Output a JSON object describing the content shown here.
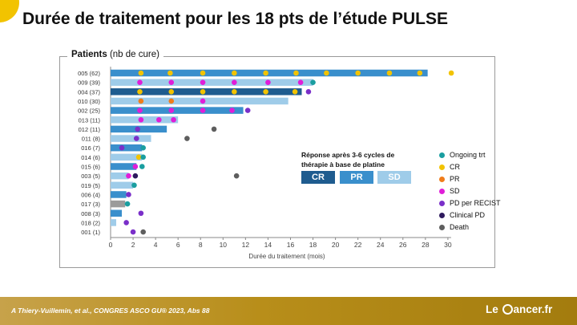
{
  "title": "Durée de traitement pour les 18 pts de l’étude PULSE",
  "panel": {
    "label_bold": "Patients",
    "label_rest": " (nb de cure)"
  },
  "response_box": {
    "title": "Réponse après 3-6 cycles de thérapie à base de platine",
    "items": [
      {
        "label": "CR",
        "color": "#1f5c8f"
      },
      {
        "label": "PR",
        "color": "#3a8fcc"
      },
      {
        "label": "SD",
        "color": "#9fcce9"
      }
    ]
  },
  "legend": [
    {
      "label": "Ongoing trt",
      "color": "#1a9ea0",
      "icon": "teal-dot-icon"
    },
    {
      "label": "CR",
      "color": "#f2c300",
      "icon": "yellow-dot-icon"
    },
    {
      "label": "PR",
      "color": "#f07c1a",
      "icon": "orange-dot-icon"
    },
    {
      "label": "SD",
      "color": "#e01ed8",
      "icon": "magenta-dot-icon"
    },
    {
      "label": "PD per RECIST",
      "color": "#7a2fc9",
      "icon": "purple-dot-icon"
    },
    {
      "label": "Clinical PD",
      "color": "#2e1a5e",
      "icon": "dark-purple-dot-icon"
    },
    {
      "label": "Death",
      "color": "#5e5e5e",
      "icon": "gray-dot-icon"
    }
  ],
  "footer": {
    "citation": "A Thiery-Vuillemin, et al., CONGRES ASCO GU® 2023, Abs 88",
    "logo_left": "Le ",
    "logo_right": "ancer.fr"
  },
  "chart_data": {
    "type": "bar",
    "orientation": "horizontal",
    "xlabel": "Durée du traitement (mois)",
    "xlim": [
      0,
      30
    ],
    "xticks": [
      0,
      2,
      4,
      6,
      8,
      10,
      12,
      14,
      16,
      18,
      20,
      22,
      24,
      26,
      28,
      30
    ],
    "grid": false,
    "bar_colors": {
      "CR": "#1f5c8f",
      "PR": "#3a8fcc",
      "SD": "#9fcce9",
      "NE": "#9b9b9b"
    },
    "event_colors": {
      "CR": "#f2c300",
      "PR": "#f07c1a",
      "SD": "#e01ed8",
      "PD": "#7a2fc9",
      "ClinPD": "#2e1a5e",
      "Ongoing": "#1a9ea0",
      "Death": "#5e5e5e"
    },
    "patients": [
      {
        "label": "005 (62)",
        "duration": 28.2,
        "response": "PR",
        "events": [
          [
            2.7,
            "CR"
          ],
          [
            5.3,
            "CR"
          ],
          [
            8.2,
            "CR"
          ],
          [
            11,
            "CR"
          ],
          [
            13.8,
            "CR"
          ],
          [
            16.5,
            "CR"
          ],
          [
            19.2,
            "CR"
          ],
          [
            22,
            "CR"
          ],
          [
            24.8,
            "CR"
          ],
          [
            27.5,
            "CR"
          ],
          [
            30.3,
            "CR"
          ]
        ]
      },
      {
        "label": "009 (39)",
        "duration": 18,
        "response": "SD",
        "events": [
          [
            2.6,
            "SD"
          ],
          [
            5.4,
            "SD"
          ],
          [
            8.2,
            "SD"
          ],
          [
            11,
            "SD"
          ],
          [
            14,
            "SD"
          ],
          [
            16.9,
            "SD"
          ],
          [
            18,
            "Ongoing"
          ]
        ]
      },
      {
        "label": "004 (37)",
        "duration": 17,
        "response": "CR",
        "events": [
          [
            2.6,
            "CR"
          ],
          [
            5.4,
            "CR"
          ],
          [
            8.2,
            "CR"
          ],
          [
            11,
            "CR"
          ],
          [
            13.8,
            "CR"
          ],
          [
            16.4,
            "CR"
          ],
          [
            17.6,
            "PD"
          ]
        ]
      },
      {
        "label": "010 (30)",
        "duration": 15.8,
        "response": "SD",
        "events": [
          [
            2.7,
            "PR"
          ],
          [
            5.4,
            "PR"
          ],
          [
            8.2,
            "SD"
          ]
        ]
      },
      {
        "label": "002 (25)",
        "duration": 11.8,
        "response": "PR",
        "events": [
          [
            2.6,
            "SD"
          ],
          [
            5.4,
            "SD"
          ],
          [
            8.2,
            "SD"
          ],
          [
            10.8,
            "SD"
          ],
          [
            12.2,
            "PD"
          ]
        ]
      },
      {
        "label": "013 (11)",
        "duration": 6,
        "response": "SD",
        "events": [
          [
            2.7,
            "SD"
          ],
          [
            4.3,
            "SD"
          ],
          [
            5.6,
            "SD"
          ]
        ]
      },
      {
        "label": "012 (11)",
        "duration": 5,
        "response": "PR",
        "events": [
          [
            2.4,
            "PD"
          ],
          [
            9.2,
            "Death"
          ]
        ]
      },
      {
        "label": "011 (8)",
        "duration": 3.6,
        "response": "SD",
        "events": [
          [
            2.3,
            "PD"
          ],
          [
            6.8,
            "Death"
          ]
        ]
      },
      {
        "label": "016 (7)",
        "duration": 2.8,
        "response": "PR",
        "events": [
          [
            1,
            "PD"
          ],
          [
            2.9,
            "Ongoing"
          ]
        ]
      },
      {
        "label": "014 (6)",
        "duration": 2.8,
        "response": "SD",
        "events": [
          [
            2.5,
            "CR"
          ],
          [
            2.9,
            "Ongoing"
          ]
        ]
      },
      {
        "label": "015 (6)",
        "duration": 2.3,
        "response": "PR",
        "events": [
          [
            2.2,
            "SD"
          ],
          [
            2.8,
            "Ongoing"
          ]
        ]
      },
      {
        "label": "003 (5)",
        "duration": 1.6,
        "response": "SD",
        "events": [
          [
            1.6,
            "SD"
          ],
          [
            2.2,
            "ClinPD"
          ],
          [
            11.2,
            "Death"
          ]
        ]
      },
      {
        "label": "019 (5)",
        "duration": 2,
        "response": "SD",
        "events": [
          [
            2.1,
            "Ongoing"
          ]
        ]
      },
      {
        "label": "006 (4)",
        "duration": 1.4,
        "response": "PR",
        "events": [
          [
            1.6,
            "PD"
          ]
        ]
      },
      {
        "label": "017 (3)",
        "duration": 1.3,
        "response": "NE",
        "events": [
          [
            1.5,
            "Ongoing"
          ]
        ]
      },
      {
        "label": "008 (3)",
        "duration": 1,
        "response": "PR",
        "events": [
          [
            2.7,
            "PD"
          ]
        ]
      },
      {
        "label": "018 (2)",
        "duration": 0.5,
        "response": "SD",
        "events": [
          [
            1.4,
            "PD"
          ]
        ]
      },
      {
        "label": "001 (1)",
        "duration": 0,
        "response": "PR",
        "events": [
          [
            2,
            "PD"
          ],
          [
            2.9,
            "Death"
          ]
        ]
      }
    ]
  }
}
